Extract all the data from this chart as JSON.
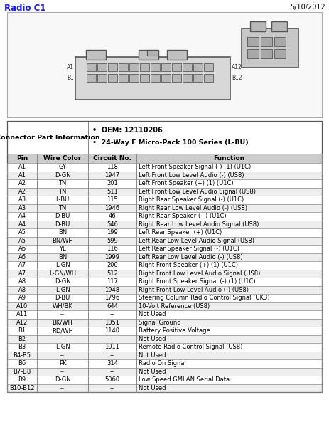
{
  "title": "Radio C1",
  "date": "5/10/2012",
  "oem": "OEM: 12110206",
  "series": "24-Way F Micro-Pack 100 Series (L-BU)",
  "connector_label": "Connector Part Information",
  "headers": [
    "Pin",
    "Wire Color",
    "Circuit No.",
    "Function"
  ],
  "rows": [
    [
      "A1",
      "GY",
      "118",
      "Left Front Speaker Signal (-) (1) (U1C)"
    ],
    [
      "A1",
      "D-GN",
      "1947",
      "Left Front Low Level Audio (-) (US8)"
    ],
    [
      "A2",
      "TN",
      "201",
      "Left Front Speaker (+) (1) (U1C)"
    ],
    [
      "A2",
      "TN",
      "511",
      "Left Front Low Level Audio Signal (US8)"
    ],
    [
      "A3",
      "L-BU",
      "115",
      "Right Rear Speaker Signal (-) (U1C)"
    ],
    [
      "A3",
      "TN",
      "1946",
      "Right Rear Low Level Audio (-) (US8)"
    ],
    [
      "A4",
      "D-BU",
      "46",
      "Right Rear Speaker (+) (U1C)"
    ],
    [
      "A4",
      "D-BU",
      "546",
      "Right Rear Low Level Audio Signal (US8)"
    ],
    [
      "A5",
      "BN",
      "199",
      "Left Rear Speaker (+) (U1C)"
    ],
    [
      "A5",
      "BN/WH",
      "599",
      "Left Rear Low Level Audio Signal (US8)"
    ],
    [
      "A6",
      "YE",
      "116",
      "Left Rear Speaker Signal (-) (U1C)"
    ],
    [
      "A6",
      "BN",
      "1999",
      "Left Rear Low Level Audio (-) (US8)"
    ],
    [
      "A7",
      "L-GN",
      "200",
      "Right Front Speaker (+) (1) (U1C)"
    ],
    [
      "A7",
      "L-GN/WH",
      "512",
      "Right Front Low Level Audio Signal (US8)"
    ],
    [
      "A8",
      "D-GN",
      "117",
      "Right Front Speaker Signal (-) (1) (U1C)"
    ],
    [
      "A8",
      "L-GN",
      "1948",
      "Right Front Low Level Audio (-) (US8)"
    ],
    [
      "A9",
      "D-BU",
      "1796",
      "Steering Column Radio Control Signal (UK3)"
    ],
    [
      "A10",
      "WH/BK",
      "644",
      "10-Volt Reference (US8)"
    ],
    [
      "A11",
      "--",
      "--",
      "Not Used"
    ],
    [
      "A12",
      "BK/WH",
      "1051",
      "Signal Ground"
    ],
    [
      "B1",
      "RD/WH",
      "1140",
      "Battery Positive Voltage"
    ],
    [
      "B2",
      "--",
      "--",
      "Not Used"
    ],
    [
      "B3",
      "L-GN",
      "1011",
      "Remote Radio Control Signal (US8)"
    ],
    [
      "B4-B5",
      "--",
      "--",
      "Not Used"
    ],
    [
      "B6",
      "PK",
      "314",
      "Radio On Signal"
    ],
    [
      "B7-B8",
      "--",
      "--",
      "Not Used"
    ],
    [
      "B9",
      "D-GN",
      "5060",
      "Low Speed GMLAN Serial Data"
    ],
    [
      "B10-B12",
      "--",
      "--",
      "Not Used"
    ]
  ],
  "bg_color": "#ffffff",
  "header_bg": "#cccccc",
  "row_alt_color": "#eeeeee",
  "row_color": "#ffffff",
  "border_color": "#888888",
  "title_color": "#1a1aff",
  "text_color": "#000000",
  "fig_w": 4.63,
  "fig_h": 6.0,
  "dpi": 100
}
